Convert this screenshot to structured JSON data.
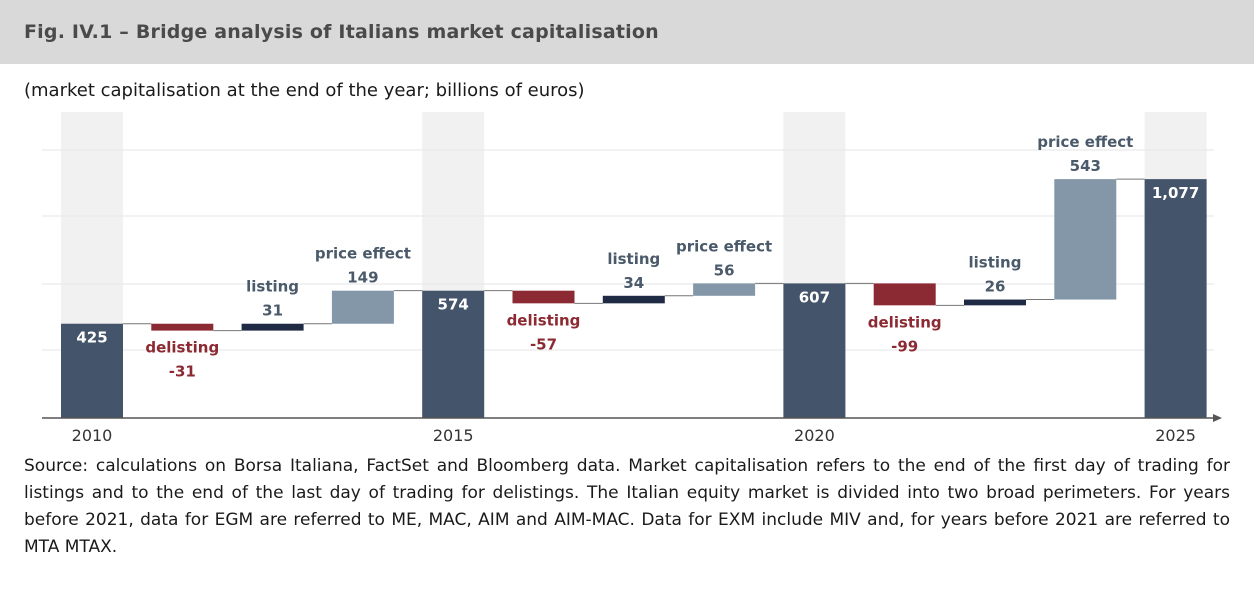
{
  "header": {
    "title": "Fig. IV.1 – Bridge analysis of Italians market capitalisation",
    "subtitle": "(market capitalisation at the end of the year; billions of euros)"
  },
  "chart_data": {
    "type": "bar",
    "subtype": "waterfall",
    "title": "Fig. IV.1 – Bridge analysis of Italians market capitalisation",
    "subtitle": "(market capitalisation at the end of the year; billions of euros)",
    "x_tick_labels": [
      "2010",
      "2015",
      "2020",
      "2025"
    ],
    "ylim": [
      0,
      1130
    ],
    "grid": true,
    "steps": [
      {
        "kind": "total",
        "label": "",
        "value_label": "425",
        "value": 425
      },
      {
        "kind": "delta",
        "label": "delisting",
        "value_label": "-31",
        "value": -31
      },
      {
        "kind": "delta",
        "label": "listing",
        "value_label": "31",
        "value": 31
      },
      {
        "kind": "delta",
        "label": "price effect",
        "value_label": "149",
        "value": 149
      },
      {
        "kind": "total",
        "label": "",
        "value_label": "574",
        "value": 574
      },
      {
        "kind": "delta",
        "label": "delisting",
        "value_label": "-57",
        "value": -57
      },
      {
        "kind": "delta",
        "label": "listing",
        "value_label": "34",
        "value": 34
      },
      {
        "kind": "delta",
        "label": "price effect",
        "value_label": "56",
        "value": 56
      },
      {
        "kind": "total",
        "label": "",
        "value_label": "607",
        "value": 607
      },
      {
        "kind": "delta",
        "label": "delisting",
        "value_label": "-99",
        "value": -99
      },
      {
        "kind": "delta",
        "label": "listing",
        "value_label": "26",
        "value": 26
      },
      {
        "kind": "delta",
        "label": "price effect",
        "value_label": "543",
        "value": 543
      },
      {
        "kind": "total",
        "label": "",
        "value_label": "1,077",
        "value": 1077
      }
    ],
    "colors": {
      "total": "#44546a",
      "delisting": "#8b2a32",
      "listing": "#1f2a44",
      "price_effect": "#8497a8",
      "grid": "#e6e6e6",
      "band": "#f1f1f1",
      "axis": "#555555"
    }
  },
  "source": "Source: calculations on Borsa Italiana, FactSet and Bloomberg data. Market capitalisation refers to the end of the first day of trading for listings and to the end of the last day of trading for delistings. The Italian equity market is divided into two broad perimeters. For years before 2021, data for EGM are referred to ME, MAC, AIM and AIM-MAC. Data for EXM include MIV and, for years before 2021 are referred to MTA MTAX."
}
